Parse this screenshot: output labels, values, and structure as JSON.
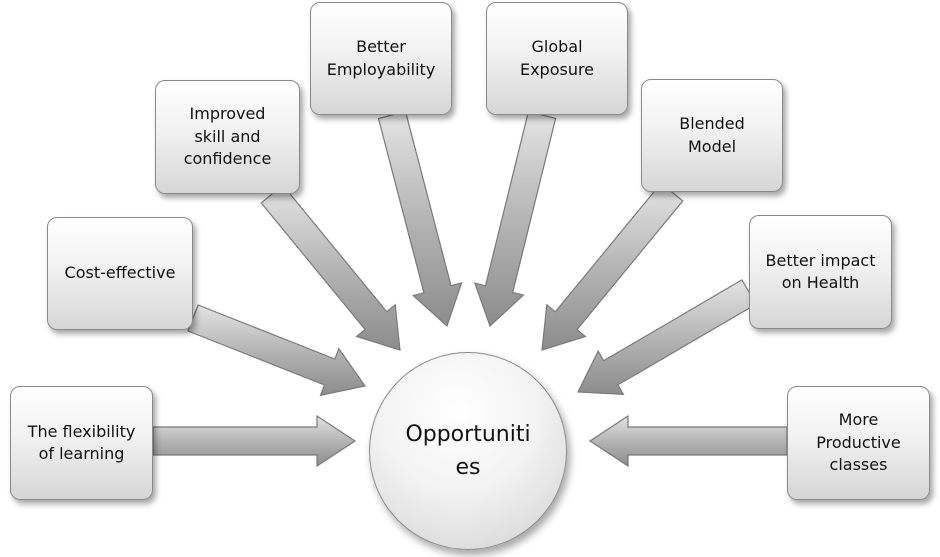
{
  "center": {
    "label": "Opportuniti\nes"
  },
  "nodes": [
    {
      "id": "flexibility",
      "label": "The flexibility\nof learning"
    },
    {
      "id": "cost",
      "label": "Cost-effective"
    },
    {
      "id": "skill",
      "label": "Improved\nskill and\nconfidence"
    },
    {
      "id": "employability",
      "label": "Better\nEmployability"
    },
    {
      "id": "global",
      "label": "Global\nExposure"
    },
    {
      "id": "blended",
      "label": "Blended\nModel"
    },
    {
      "id": "health",
      "label": "Better impact\non Health"
    },
    {
      "id": "productive",
      "label": "More\nProductive\nclasses"
    }
  ],
  "colors": {
    "arrow_light": "#d9d9d9",
    "arrow_dark": "#8f8f8f",
    "outline": "#7a7a7a"
  }
}
